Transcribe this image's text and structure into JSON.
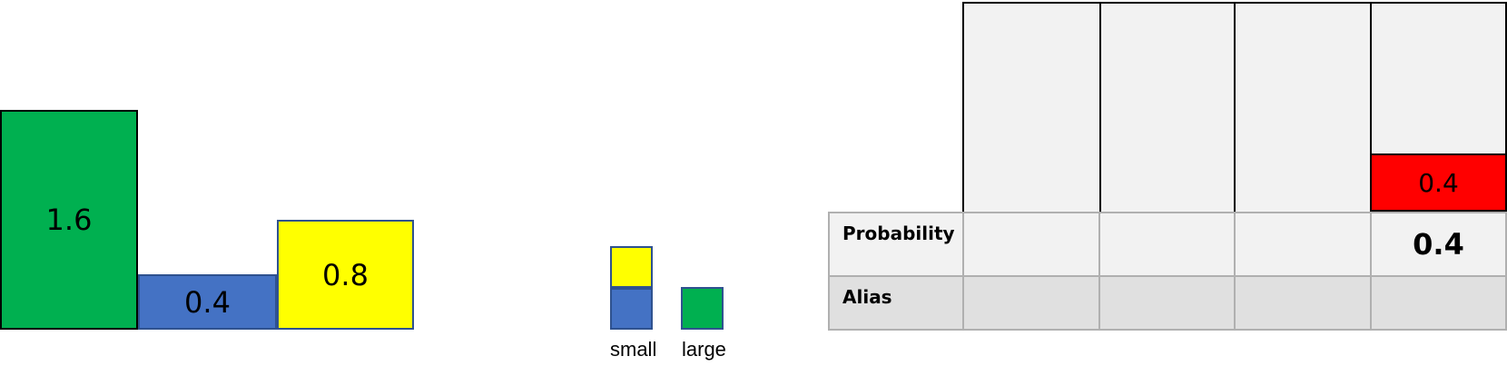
{
  "bars": [
    {
      "label": "1.6",
      "color": "#00b050"
    },
    {
      "label": "0.4",
      "color": "#4472c4"
    },
    {
      "label": "0.8",
      "color": "#ffff00"
    }
  ],
  "legend": {
    "small_label": "small",
    "large_label": "large"
  },
  "columns": {
    "count": 4,
    "red_bar_label": "0.4",
    "red_bar_color": "#ff0000"
  },
  "table": {
    "rows": [
      {
        "label": "Probability",
        "cells": [
          "",
          "",
          "",
          "0.4"
        ]
      },
      {
        "label": "Alias",
        "cells": [
          "",
          "",
          "",
          ""
        ]
      }
    ]
  }
}
